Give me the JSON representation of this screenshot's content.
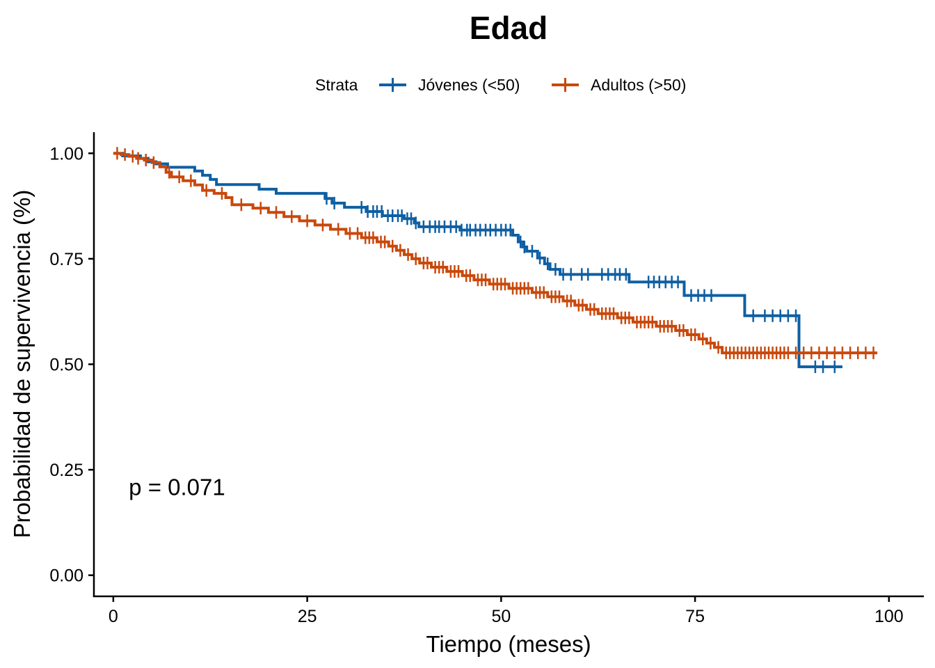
{
  "chart_data": {
    "type": "line",
    "title": "Edad",
    "xlabel": "Tiempo (meses)",
    "ylabel": "Probabilidad de supervivencia (%)",
    "xlim": [
      -2.5,
      104.5
    ],
    "ylim": [
      -0.05,
      1.05
    ],
    "x_ticks": [
      0,
      25,
      50,
      75,
      100
    ],
    "x_tick_labels": [
      "0",
      "25",
      "50",
      "75",
      "100"
    ],
    "y_ticks": [
      0,
      0.25,
      0.5,
      0.75,
      1.0
    ],
    "y_tick_labels": [
      "0.00",
      "0.25",
      "0.50",
      "0.75",
      "1.00"
    ],
    "grid": false,
    "legend": {
      "title": "Strata",
      "position": "top"
    },
    "annotation": {
      "text": "p = 0.071",
      "x": 2,
      "y": 0.19
    },
    "series": [
      {
        "name": "Jóvenes (<50)",
        "color": "#0E5FA3",
        "steps": [
          [
            0,
            1.0
          ],
          [
            1.2,
            0.994
          ],
          [
            3.5,
            0.988
          ],
          [
            4.5,
            0.98
          ],
          [
            5.5,
            0.975
          ],
          [
            7.0,
            0.967
          ],
          [
            10.5,
            0.958
          ],
          [
            11.5,
            0.948
          ],
          [
            12.5,
            0.938
          ],
          [
            13.3,
            0.926
          ],
          [
            18.8,
            0.915
          ],
          [
            21.0,
            0.905
          ],
          [
            27.3,
            0.893
          ],
          [
            28.2,
            0.882
          ],
          [
            29.8,
            0.872
          ],
          [
            32.6,
            0.862
          ],
          [
            34.7,
            0.852
          ],
          [
            37.5,
            0.845
          ],
          [
            38.8,
            0.835
          ],
          [
            39.4,
            0.826
          ],
          [
            44.7,
            0.818
          ],
          [
            51.5,
            0.806
          ],
          [
            52.2,
            0.79
          ],
          [
            52.8,
            0.778
          ],
          [
            53.3,
            0.768
          ],
          [
            54.7,
            0.752
          ],
          [
            55.6,
            0.738
          ],
          [
            56.3,
            0.725
          ],
          [
            57.6,
            0.713
          ],
          [
            66.5,
            0.695
          ],
          [
            73.6,
            0.663
          ],
          [
            81.4,
            0.615
          ],
          [
            88.4,
            0.494
          ]
        ],
        "end": 94.0,
        "censored": [
          27.5,
          28.5,
          32.0,
          32.8,
          33.5,
          34.0,
          34.6,
          35.4,
          36.0,
          36.7,
          37.2,
          37.9,
          38.4,
          39.0,
          40.0,
          40.8,
          41.5,
          42.0,
          42.7,
          43.5,
          44.2,
          44.9,
          45.6,
          46.0,
          46.7,
          47.3,
          48.0,
          48.6,
          49.3,
          50.0,
          50.6,
          51.2,
          52.5,
          53.0,
          54.0,
          55.0,
          56.0,
          57.0,
          58.0,
          59.0,
          60.4,
          61.2,
          63.0,
          63.8,
          64.7,
          65.3,
          66.1,
          69.0,
          69.7,
          70.4,
          71.2,
          72.0,
          72.8,
          74.5,
          75.4,
          76.2,
          77.1,
          82.5,
          84.0,
          85.0,
          86.0,
          87.0,
          88.0,
          90.5,
          91.5,
          93.0
        ]
      },
      {
        "name": "Adultos (>50)",
        "color": "#C9480C",
        "steps": [
          [
            0,
            1.0
          ],
          [
            1.0,
            0.997
          ],
          [
            2.0,
            0.993
          ],
          [
            3.0,
            0.988
          ],
          [
            4.0,
            0.984
          ],
          [
            5.0,
            0.978
          ],
          [
            6.0,
            0.968
          ],
          [
            6.8,
            0.955
          ],
          [
            7.5,
            0.944
          ],
          [
            9.0,
            0.935
          ],
          [
            10.5,
            0.925
          ],
          [
            11.5,
            0.912
          ],
          [
            13.0,
            0.905
          ],
          [
            14.5,
            0.895
          ],
          [
            15.3,
            0.878
          ],
          [
            18.0,
            0.87
          ],
          [
            20.0,
            0.86
          ],
          [
            22.0,
            0.85
          ],
          [
            24.0,
            0.84
          ],
          [
            26.0,
            0.83
          ],
          [
            28.0,
            0.82
          ],
          [
            30.0,
            0.81
          ],
          [
            32.0,
            0.8
          ],
          [
            34.0,
            0.79
          ],
          [
            35.5,
            0.78
          ],
          [
            36.5,
            0.77
          ],
          [
            37.5,
            0.76
          ],
          [
            38.5,
            0.75
          ],
          [
            39.5,
            0.74
          ],
          [
            41.0,
            0.73
          ],
          [
            43.0,
            0.72
          ],
          [
            45.0,
            0.71
          ],
          [
            46.5,
            0.7
          ],
          [
            48.5,
            0.69
          ],
          [
            51.0,
            0.68
          ],
          [
            54.0,
            0.67
          ],
          [
            56.0,
            0.66
          ],
          [
            58.0,
            0.65
          ],
          [
            59.5,
            0.64
          ],
          [
            61.0,
            0.63
          ],
          [
            62.5,
            0.62
          ],
          [
            65.0,
            0.61
          ],
          [
            67.0,
            0.6
          ],
          [
            70.0,
            0.59
          ],
          [
            72.5,
            0.58
          ],
          [
            74.0,
            0.57
          ],
          [
            75.5,
            0.56
          ],
          [
            76.5,
            0.55
          ],
          [
            77.5,
            0.54
          ],
          [
            78.5,
            0.527
          ]
        ],
        "end": 98.5,
        "censored": [
          0.5,
          1.5,
          2.5,
          3.2,
          4.2,
          5.2,
          7.2,
          8.5,
          10.0,
          12.0,
          14.0,
          16.5,
          19.0,
          21.0,
          23.0,
          25.0,
          27.0,
          29.0,
          30.5,
          31.5,
          32.5,
          33.0,
          33.5,
          34.5,
          35.0,
          36.0,
          37.0,
          38.0,
          39.0,
          40.0,
          40.5,
          41.5,
          42.0,
          42.5,
          43.5,
          44.0,
          44.5,
          45.5,
          46.0,
          47.0,
          47.5,
          48.0,
          49.0,
          49.5,
          50.0,
          50.5,
          51.5,
          52.0,
          52.5,
          53.0,
          53.5,
          54.5,
          55.0,
          55.5,
          56.5,
          57.0,
          57.5,
          58.5,
          59.0,
          60.0,
          60.5,
          61.5,
          62.0,
          63.0,
          63.5,
          64.0,
          64.5,
          65.5,
          66.0,
          66.5,
          67.5,
          68.0,
          68.5,
          69.0,
          69.5,
          70.5,
          71.0,
          71.5,
          72.0,
          73.0,
          73.5,
          74.5,
          75.0,
          76.0,
          77.0,
          78.0,
          79.0,
          79.5,
          80.0,
          80.5,
          81.0,
          81.5,
          82.0,
          82.5,
          83.0,
          83.5,
          84.0,
          84.5,
          85.0,
          85.5,
          86.0,
          86.5,
          87.0,
          88.0,
          89.0,
          90.0,
          91.0,
          92.0,
          93.0,
          94.0,
          95.0,
          96.0,
          97.0,
          98.0
        ]
      }
    ]
  }
}
